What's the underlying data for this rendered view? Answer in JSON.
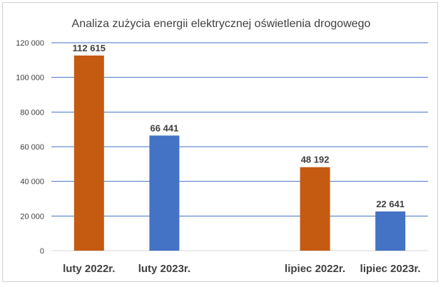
{
  "chart_data": {
    "type": "bar",
    "title": "Analiza zużycia energii elektrycznej oświetlenia drogowego",
    "xlabel": "",
    "ylabel": "",
    "categories": [
      "luty 2022r.",
      "luty 2023r.",
      "",
      "lipiec 2022r.",
      "lipiec 2023r."
    ],
    "values": [
      112615,
      66441,
      null,
      48192,
      22641
    ],
    "data_labels": [
      "112 615",
      "66 441",
      "",
      "48 192",
      "22 641"
    ],
    "bar_colors": [
      "#c55a11",
      "#4472c4",
      "",
      "#c55a11",
      "#4472c4"
    ],
    "ylim": [
      0,
      120000
    ],
    "yticks": [
      0,
      20000,
      40000,
      60000,
      80000,
      100000,
      120000
    ],
    "ytick_labels": [
      "0",
      "20 000",
      "40 000",
      "60 000",
      "80 000",
      "100 000",
      "120 000"
    ],
    "grid": true,
    "gridline_color": "#4472c4",
    "legend": "none"
  }
}
